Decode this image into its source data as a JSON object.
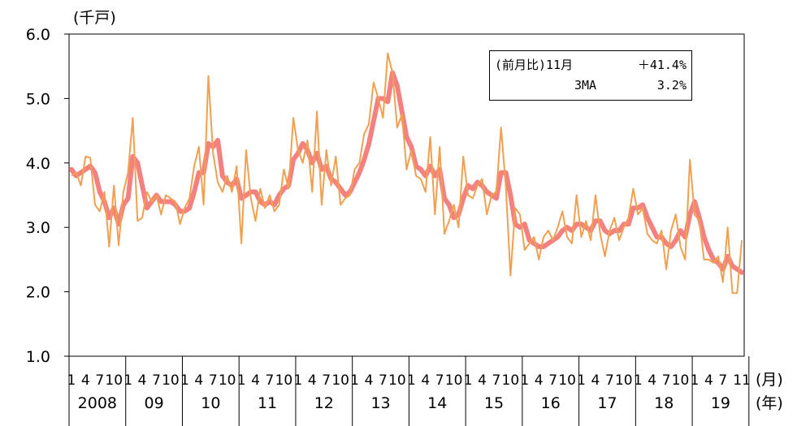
{
  "chart_data": {
    "type": "line",
    "unit_label": "(千戸)",
    "x_month_label": "(月)",
    "x_year_label": "(年)",
    "ylim": [
      1.0,
      6.0
    ],
    "y_ticks": [
      "1.0",
      "2.0",
      "3.0",
      "4.0",
      "5.0",
      "6.0"
    ],
    "month_tick_labels": [
      "1",
      "4",
      "7",
      "10"
    ],
    "final_month_tick_labels": [
      "1",
      "4",
      "7",
      "11"
    ],
    "year_labels": [
      "2008",
      "09",
      "10",
      "11",
      "12",
      "13",
      "14",
      "15",
      "16",
      "17",
      "18",
      "19"
    ],
    "start": "2008-01",
    "end": "2019-11",
    "series": [
      {
        "key": "monthly",
        "color": "#f0a050",
        "values": [
          3.8,
          3.85,
          3.65,
          4.1,
          4.08,
          3.35,
          3.25,
          3.55,
          2.7,
          3.65,
          2.72,
          3.55,
          3.85,
          4.7,
          3.1,
          3.15,
          3.55,
          3.4,
          3.5,
          3.2,
          3.5,
          3.45,
          3.4,
          3.05,
          3.3,
          3.45,
          3.95,
          4.25,
          3.35,
          5.35,
          4.15,
          3.7,
          3.55,
          3.8,
          3.55,
          3.95,
          2.75,
          4.2,
          3.45,
          3.1,
          3.6,
          3.3,
          3.5,
          3.25,
          3.35,
          3.9,
          3.6,
          4.7,
          4.2,
          4.0,
          4.35,
          3.55,
          4.8,
          3.35,
          4.2,
          3.65,
          4.1,
          3.35,
          3.45,
          3.5,
          3.9,
          4.0,
          4.45,
          4.6,
          5.25,
          5.0,
          4.7,
          5.7,
          5.4,
          4.55,
          4.75,
          3.9,
          4.2,
          3.8,
          3.75,
          3.55,
          4.4,
          3.2,
          4.25,
          2.9,
          3.1,
          3.35,
          3.0,
          4.1,
          3.5,
          3.45,
          3.65,
          3.75,
          3.2,
          3.5,
          3.55,
          4.55,
          3.65,
          2.25,
          3.3,
          3.2,
          2.65,
          2.75,
          2.85,
          2.5,
          2.85,
          2.95,
          2.8,
          3.0,
          3.25,
          2.85,
          2.75,
          3.5,
          2.85,
          3.1,
          2.8,
          3.5,
          2.9,
          2.55,
          2.95,
          3.15,
          2.8,
          3.0,
          3.15,
          3.6,
          3.2,
          3.3,
          2.9,
          2.8,
          2.75,
          2.95,
          2.35,
          2.95,
          3.2,
          2.7,
          2.5,
          4.05,
          3.2,
          3.1,
          2.5,
          2.5,
          2.45,
          2.55,
          2.15,
          3.0,
          1.98,
          1.98,
          2.8
        ]
      },
      {
        "key": "ma3",
        "name": "3MA",
        "color": "#f26a6a",
        "values": [
          3.9,
          3.8,
          3.85,
          3.9,
          3.95,
          3.85,
          3.55,
          3.4,
          3.15,
          3.3,
          3.05,
          3.35,
          3.45,
          4.1,
          4.0,
          3.65,
          3.3,
          3.4,
          3.5,
          3.4,
          3.4,
          3.4,
          3.35,
          3.25,
          3.25,
          3.3,
          3.55,
          3.85,
          3.85,
          4.3,
          4.25,
          4.35,
          3.8,
          3.7,
          3.65,
          3.75,
          3.45,
          3.5,
          3.55,
          3.55,
          3.4,
          3.35,
          3.4,
          3.35,
          3.5,
          3.6,
          3.65,
          4.05,
          4.15,
          4.3,
          4.2,
          4.0,
          4.15,
          3.9,
          3.95,
          3.75,
          3.7,
          3.6,
          3.5,
          3.55,
          3.7,
          3.85,
          4.05,
          4.3,
          4.65,
          5.0,
          5.0,
          4.95,
          5.4,
          5.2,
          4.8,
          4.4,
          4.25,
          3.95,
          3.9,
          3.8,
          3.95,
          3.8,
          3.9,
          3.45,
          3.35,
          3.15,
          3.2,
          3.45,
          3.65,
          3.6,
          3.7,
          3.65,
          3.55,
          3.5,
          3.45,
          3.85,
          3.85,
          3.5,
          3.05,
          3.0,
          3.05,
          2.8,
          2.75,
          2.7,
          2.7,
          2.75,
          2.8,
          2.85,
          2.95,
          3.0,
          2.95,
          3.05,
          3.05,
          3.0,
          2.95,
          3.1,
          3.1,
          2.95,
          2.9,
          2.95,
          2.95,
          3.05,
          3.05,
          3.3,
          3.3,
          3.35,
          3.15,
          3.0,
          2.85,
          2.85,
          2.75,
          2.7,
          2.8,
          2.95,
          2.85,
          3.2,
          3.4,
          3.15,
          2.85,
          2.65,
          2.5,
          2.45,
          2.35,
          2.55,
          2.4,
          2.35,
          2.3
        ]
      }
    ],
    "legend": {
      "row1_label": "(前月比)11月",
      "row1_value": "＋41.4%",
      "row2_label": "3MA",
      "row2_value": "3.2%",
      "placement": "top-right"
    },
    "grid": false
  }
}
